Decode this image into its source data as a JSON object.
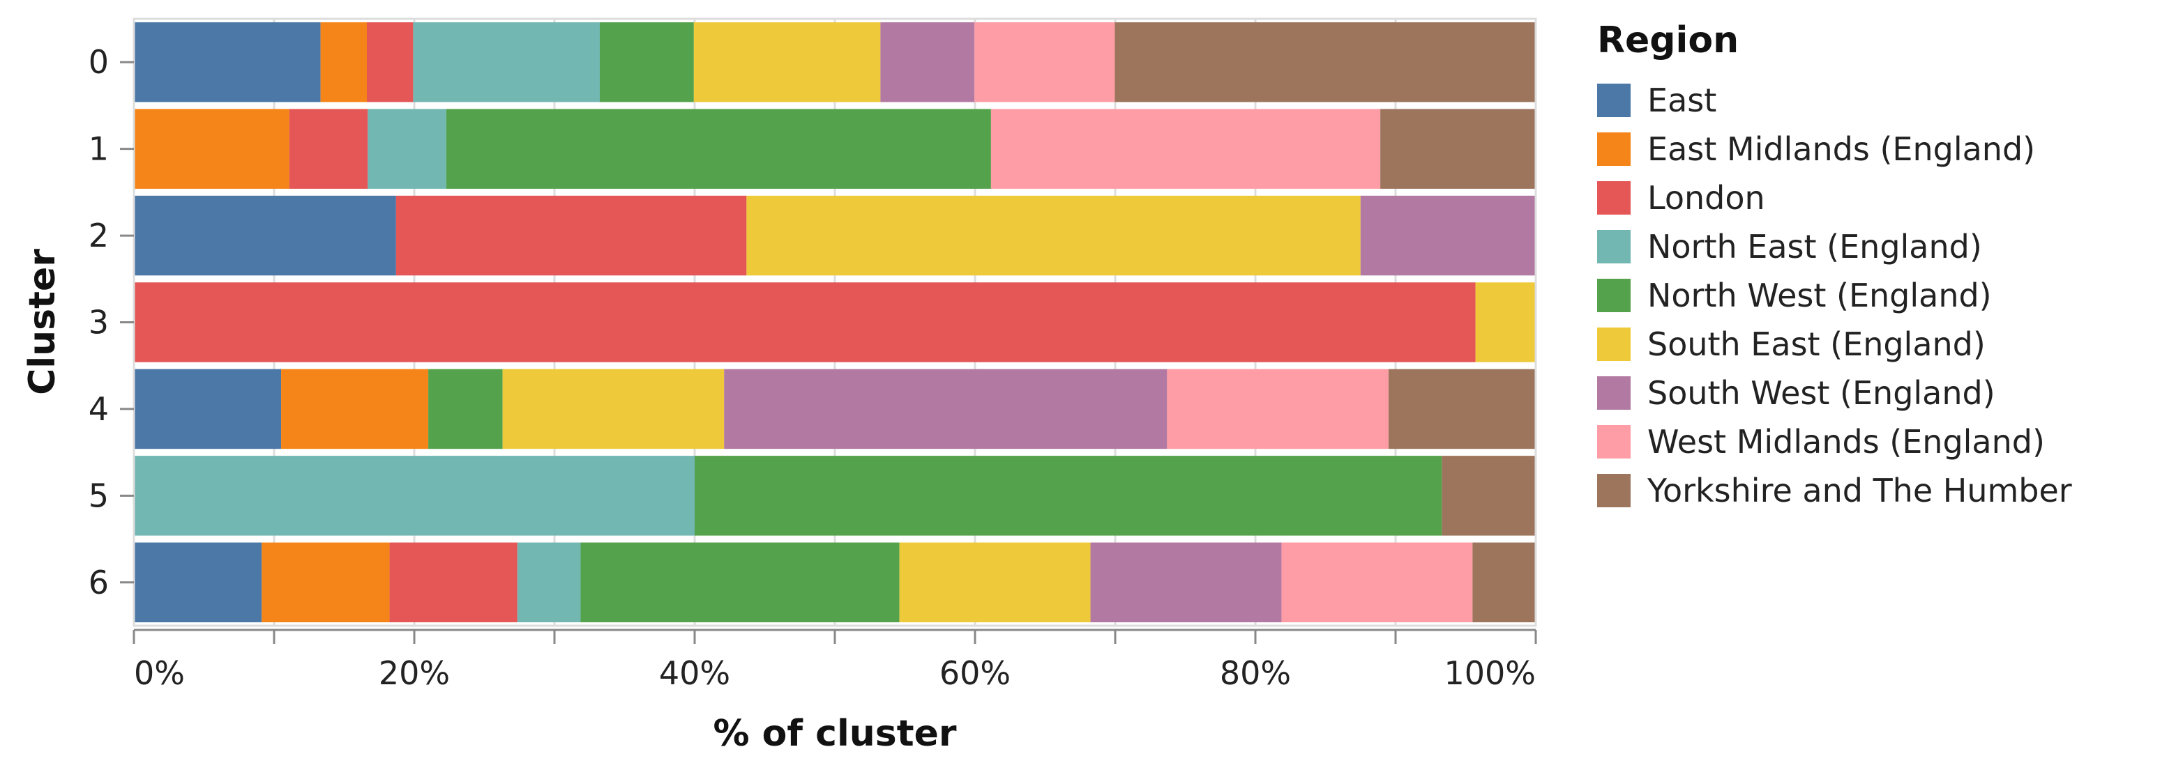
{
  "chart_data": {
    "type": "bar",
    "orientation": "horizontal",
    "stacked": "normalize",
    "xlabel": "% of cluster",
    "ylabel": "Cluster",
    "xlim": [
      0,
      100
    ],
    "x_ticks": [
      "0%",
      "20%",
      "40%",
      "60%",
      "80%",
      "100%"
    ],
    "x_tick_values": [
      0,
      20,
      40,
      60,
      80,
      100
    ],
    "grid": true,
    "legend": {
      "title": "Region",
      "position": "right"
    },
    "categories": [
      "0",
      "1",
      "2",
      "3",
      "4",
      "5",
      "6"
    ],
    "series": [
      {
        "name": "East",
        "color": "#4c78a8",
        "values": [
          13.3,
          0,
          18.7,
          0,
          10.5,
          0,
          9.1
        ]
      },
      {
        "name": "East Midlands (England)",
        "color": "#f58518",
        "values": [
          3.3,
          11.1,
          0,
          0,
          10.5,
          0,
          9.1
        ]
      },
      {
        "name": "London",
        "color": "#e45756",
        "values": [
          3.3,
          5.6,
          25.0,
          95.7,
          0,
          0,
          9.1
        ]
      },
      {
        "name": "North East (England)",
        "color": "#72b7b2",
        "values": [
          13.3,
          5.6,
          0,
          0,
          0,
          40.0,
          4.5
        ]
      },
      {
        "name": "North West (England)",
        "color": "#54a24b",
        "values": [
          6.7,
          38.9,
          0,
          0,
          5.3,
          53.3,
          22.7
        ]
      },
      {
        "name": "South East (England)",
        "color": "#eeca3b",
        "values": [
          13.3,
          0,
          43.8,
          4.3,
          15.8,
          0,
          13.6
        ]
      },
      {
        "name": "South West (England)",
        "color": "#b279a2",
        "values": [
          6.7,
          0,
          12.5,
          0,
          31.6,
          0,
          13.6
        ]
      },
      {
        "name": "West Midlands (England)",
        "color": "#ff9da6",
        "values": [
          10.0,
          27.8,
          0,
          0,
          15.8,
          0,
          13.6
        ]
      },
      {
        "name": "Yorkshire and The Humber",
        "color": "#9d755d",
        "values": [
          30.0,
          11.1,
          0,
          0,
          10.5,
          6.7,
          4.5
        ]
      }
    ]
  }
}
